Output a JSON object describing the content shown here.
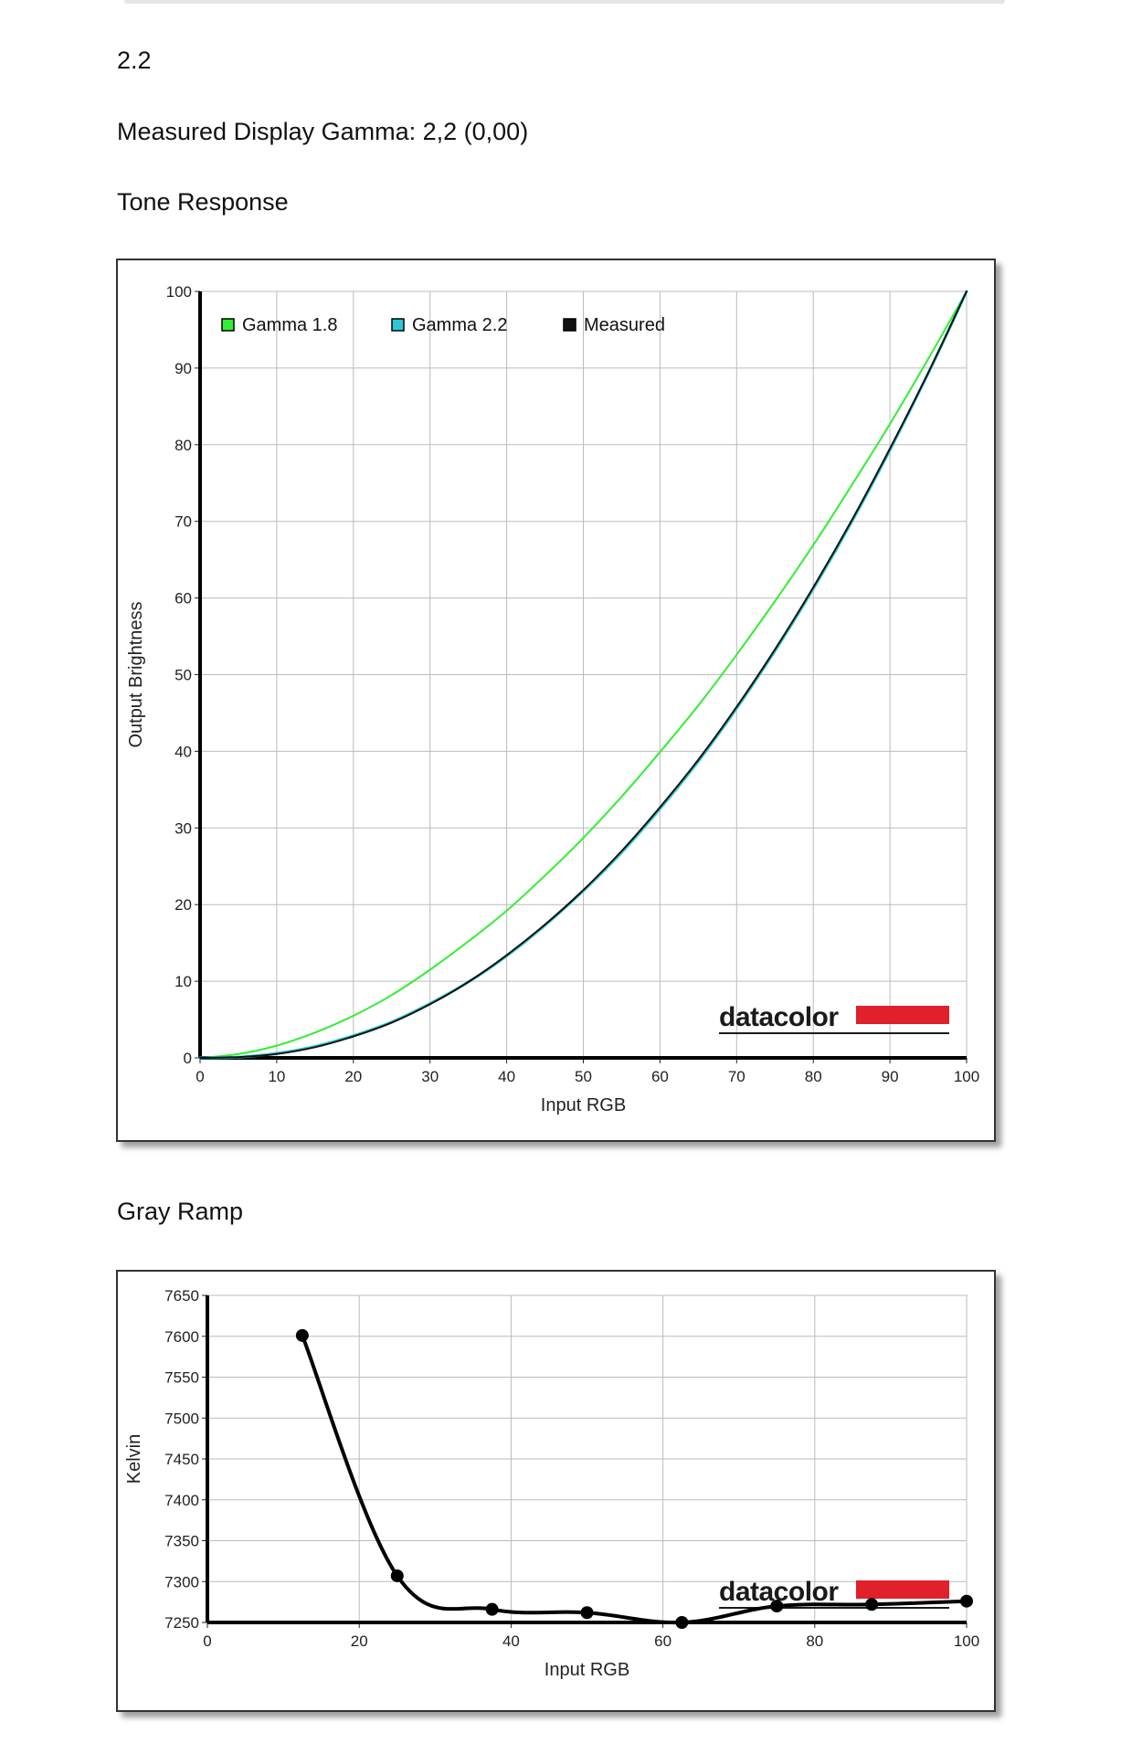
{
  "page": {
    "gamma_value": "2.2",
    "measured_gamma_text": "Measured Display Gamma: 2,2 (0,00)",
    "tone_heading": "Tone Response",
    "gray_heading": "Gray Ramp"
  },
  "brand": {
    "logo_text": "datacolor",
    "logo_color": "#e0202a"
  },
  "chart_data": [
    {
      "type": "line",
      "xlabel": "Input RGB",
      "ylabel": "Output Brightness",
      "xlim": [
        0,
        100
      ],
      "ylim": [
        0,
        100
      ],
      "xticks": [
        0,
        10,
        20,
        30,
        40,
        50,
        60,
        70,
        80,
        90,
        100
      ],
      "yticks": [
        0,
        10,
        20,
        30,
        40,
        50,
        60,
        70,
        80,
        90,
        100
      ],
      "grid": true,
      "legend_position": "top-left",
      "series": [
        {
          "name": "Gamma 1.8",
          "color": "#33ee33",
          "gamma": 1.8,
          "x": [
            0,
            5,
            10,
            15,
            20,
            25,
            30,
            35,
            40,
            45,
            50,
            55,
            60,
            65,
            70,
            75,
            80,
            85,
            90,
            95,
            100
          ],
          "y": [
            0,
            0.5,
            1.6,
            3.3,
            5.5,
            8.2,
            11.5,
            15.2,
            19.2,
            23.8,
            28.7,
            34.1,
            39.9,
            46.0,
            52.6,
            59.6,
            66.9,
            74.7,
            82.7,
            91.2,
            100
          ]
        },
        {
          "name": "Gamma 2.2",
          "color": "#29c8d4",
          "gamma": 2.2,
          "x": [
            0,
            5,
            10,
            15,
            20,
            25,
            30,
            35,
            40,
            45,
            50,
            55,
            60,
            65,
            70,
            75,
            80,
            85,
            90,
            95,
            100
          ],
          "y": [
            0,
            0.1,
            0.6,
            1.5,
            2.9,
            4.7,
            7.1,
            9.9,
            13.3,
            17.3,
            21.8,
            26.8,
            32.5,
            38.7,
            45.6,
            53.1,
            61.2,
            69.9,
            79.3,
            89.3,
            100
          ]
        },
        {
          "name": "Measured",
          "color": "#111111",
          "x": [
            0,
            5,
            10,
            15,
            20,
            25,
            30,
            35,
            40,
            45,
            50,
            55,
            60,
            65,
            70,
            75,
            80,
            85,
            90,
            95,
            100
          ],
          "y": [
            0,
            0.1,
            0.5,
            1.4,
            2.8,
            4.6,
            7.0,
            9.9,
            13.4,
            17.4,
            21.9,
            27.0,
            32.7,
            38.9,
            45.8,
            53.3,
            61.4,
            70.1,
            79.5,
            89.4,
            100
          ]
        }
      ]
    },
    {
      "type": "line",
      "xlabel": "Input RGB",
      "ylabel": "Kelvin",
      "xlim": [
        0,
        100
      ],
      "ylim": [
        7250,
        7650
      ],
      "xticks": [
        0,
        20,
        40,
        60,
        80,
        100
      ],
      "yticks": [
        7250,
        7300,
        7350,
        7400,
        7450,
        7500,
        7550,
        7600,
        7650
      ],
      "grid": true,
      "series": [
        {
          "color": "#000000",
          "x": [
            12.5,
            25,
            37.5,
            50,
            62.5,
            75,
            87.5,
            100
          ],
          "y": [
            7601,
            7307,
            7266,
            7262,
            7250,
            7270,
            7272,
            7276
          ]
        }
      ]
    }
  ]
}
